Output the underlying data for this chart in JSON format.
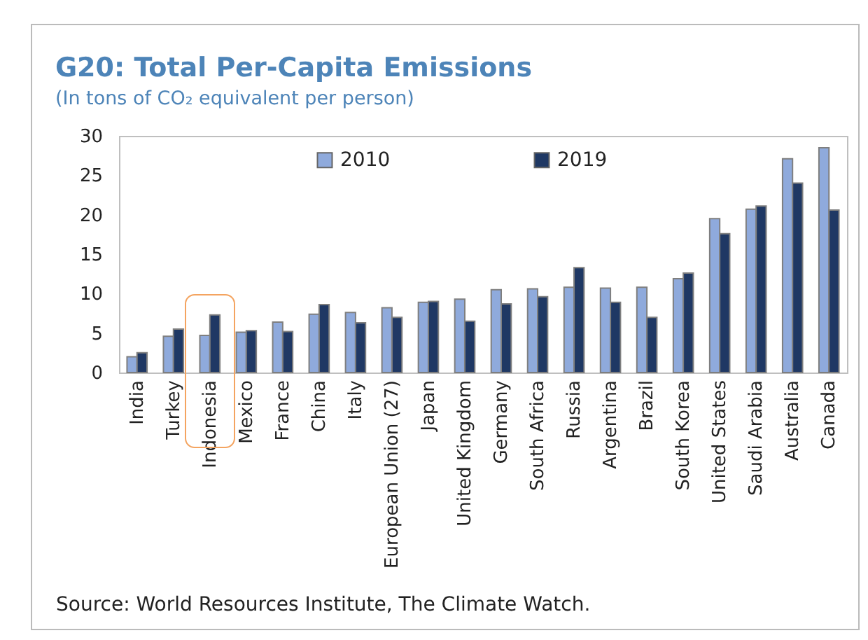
{
  "chart_data": {
    "type": "bar",
    "title": "G20: Total Per-Capita Emissions",
    "subtitle": "(In tons of CO₂ equivalent per person)",
    "categories": [
      "India",
      "Turkey",
      "Indonesia",
      "Mexico",
      "France",
      "China",
      "Italy",
      "European Union (27)",
      "Japan",
      "United Kingdom",
      "Germany",
      "South Africa",
      "Russia",
      "Argentina",
      "Brazil",
      "South Korea",
      "United States",
      "Saudi Arabia",
      "Australia",
      "Canada"
    ],
    "series": [
      {
        "name": "2010",
        "color": "#8faadc",
        "values": [
          2.0,
          4.6,
          4.7,
          5.1,
          6.4,
          7.4,
          7.6,
          8.2,
          8.9,
          9.3,
          10.5,
          10.6,
          10.8,
          10.7,
          10.8,
          11.9,
          19.5,
          20.7,
          27.1,
          28.5
        ]
      },
      {
        "name": "2019",
        "color": "#1f3864",
        "values": [
          2.5,
          5.5,
          7.3,
          5.3,
          5.2,
          8.6,
          6.3,
          7.0,
          9.0,
          6.5,
          8.7,
          9.6,
          13.3,
          8.9,
          7.0,
          12.6,
          17.6,
          21.1,
          24.0,
          20.6
        ]
      }
    ],
    "ylim": [
      0,
      30
    ],
    "yticks": [
      0,
      5,
      10,
      15,
      20,
      25,
      30
    ],
    "grid": false,
    "legend": "top",
    "annotations": [
      "Source: World Resources Institute, The Climate Watch."
    ]
  }
}
